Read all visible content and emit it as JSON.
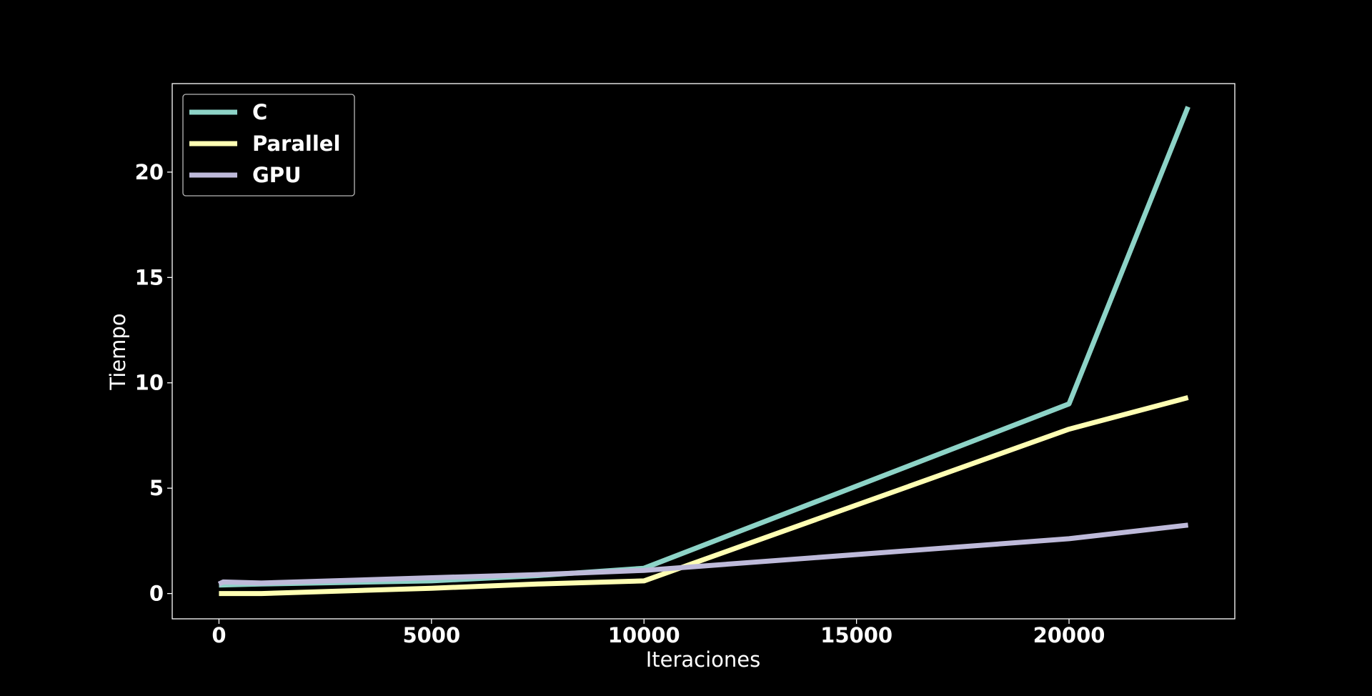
{
  "chart_data": {
    "type": "line",
    "xlabel": "Iteraciones",
    "ylabel": "Tiempo",
    "xlim": [
      -1100,
      23900
    ],
    "ylim": [
      -1.2,
      24.2
    ],
    "xticks": [
      0,
      5000,
      10000,
      15000,
      20000
    ],
    "yticks": [
      0,
      5,
      10,
      15,
      20
    ],
    "grid": false,
    "legend_position": "top-left",
    "background": "#000000",
    "series": [
      {
        "name": "C",
        "color": "#8dd3c7",
        "x": [
          0,
          1000,
          5000,
          7500,
          10000,
          20000,
          22800
        ],
        "y": [
          0.4,
          0.45,
          0.6,
          0.85,
          1.2,
          9.0,
          23.1
        ]
      },
      {
        "name": "Parallel",
        "color": "#ffffb3",
        "x": [
          0,
          1000,
          5000,
          7500,
          10000,
          20000,
          22800
        ],
        "y": [
          0.0,
          0.0,
          0.25,
          0.45,
          0.6,
          7.8,
          9.3
        ]
      },
      {
        "name": "GPU",
        "color": "#bebada",
        "x": [
          0,
          100,
          1000,
          5000,
          7500,
          10000,
          20000,
          22800
        ],
        "y": [
          0.45,
          0.55,
          0.5,
          0.75,
          0.9,
          1.1,
          2.6,
          3.25
        ]
      }
    ]
  }
}
